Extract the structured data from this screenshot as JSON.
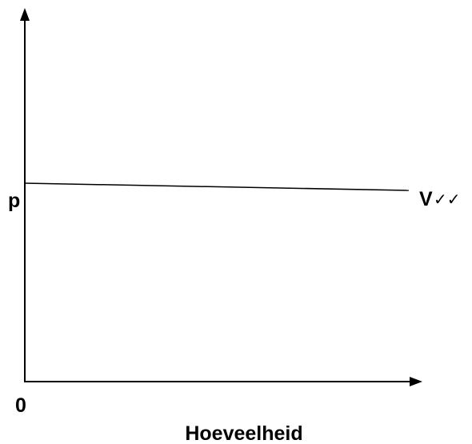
{
  "diagram": {
    "y_label": "p",
    "curve_label": "V",
    "curve_marks": "✓✓",
    "origin_label": "0",
    "x_axis_label": "Hoeveelheid"
  }
}
